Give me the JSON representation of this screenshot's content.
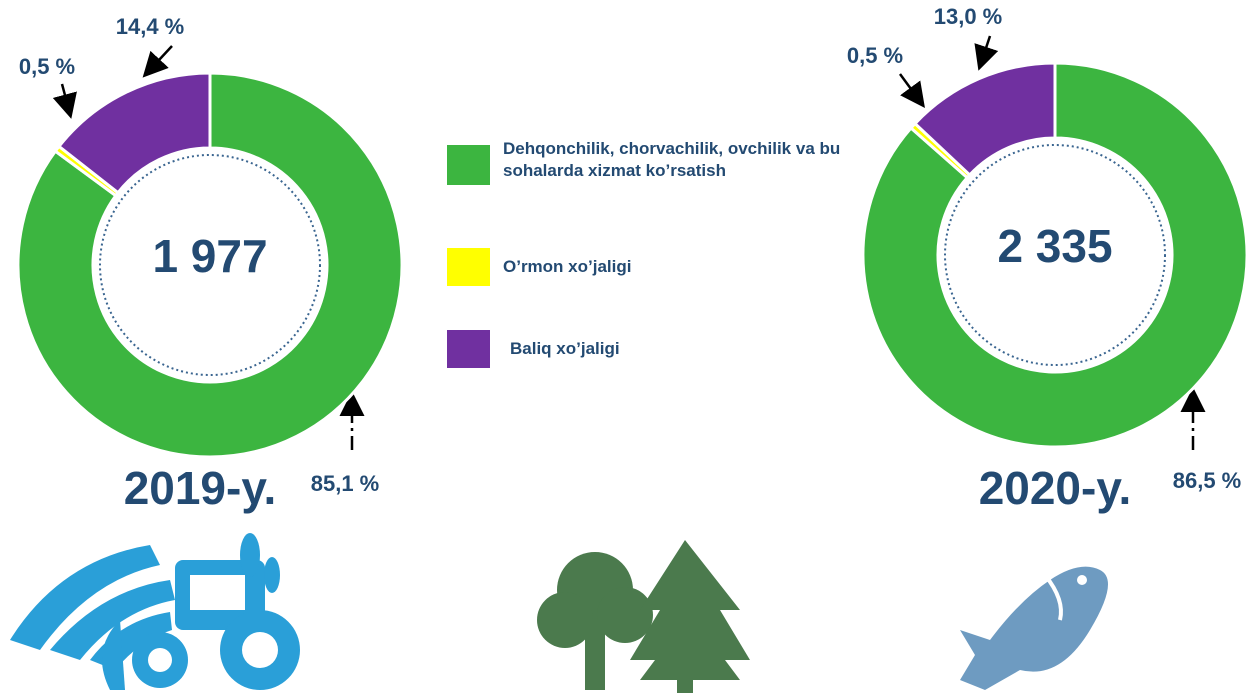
{
  "categories": [
    "Dehqonchilik, chorvachilik, ovchilik va bu sohalarda xizmat ko’rsatish",
    "O’rmon xo’jaligi",
    "Baliq xo’jaligi"
  ],
  "colors": [
    "#3cb540",
    "#ffff00",
    "#7030a0"
  ],
  "chart_data": [
    {
      "type": "pie",
      "center_label": "1 977",
      "label": "2019-y.",
      "values": [
        85.1,
        0.5,
        14.4
      ],
      "value_labels": [
        "85,1 %",
        "0,5 %",
        "14,4 %"
      ]
    },
    {
      "type": "pie",
      "center_label": "2 335",
      "label": "2020-y.",
      "values": [
        86.5,
        0.5,
        13.0
      ],
      "value_labels": [
        "86,5 %",
        "0,5 %",
        "13,0 %"
      ]
    }
  ]
}
